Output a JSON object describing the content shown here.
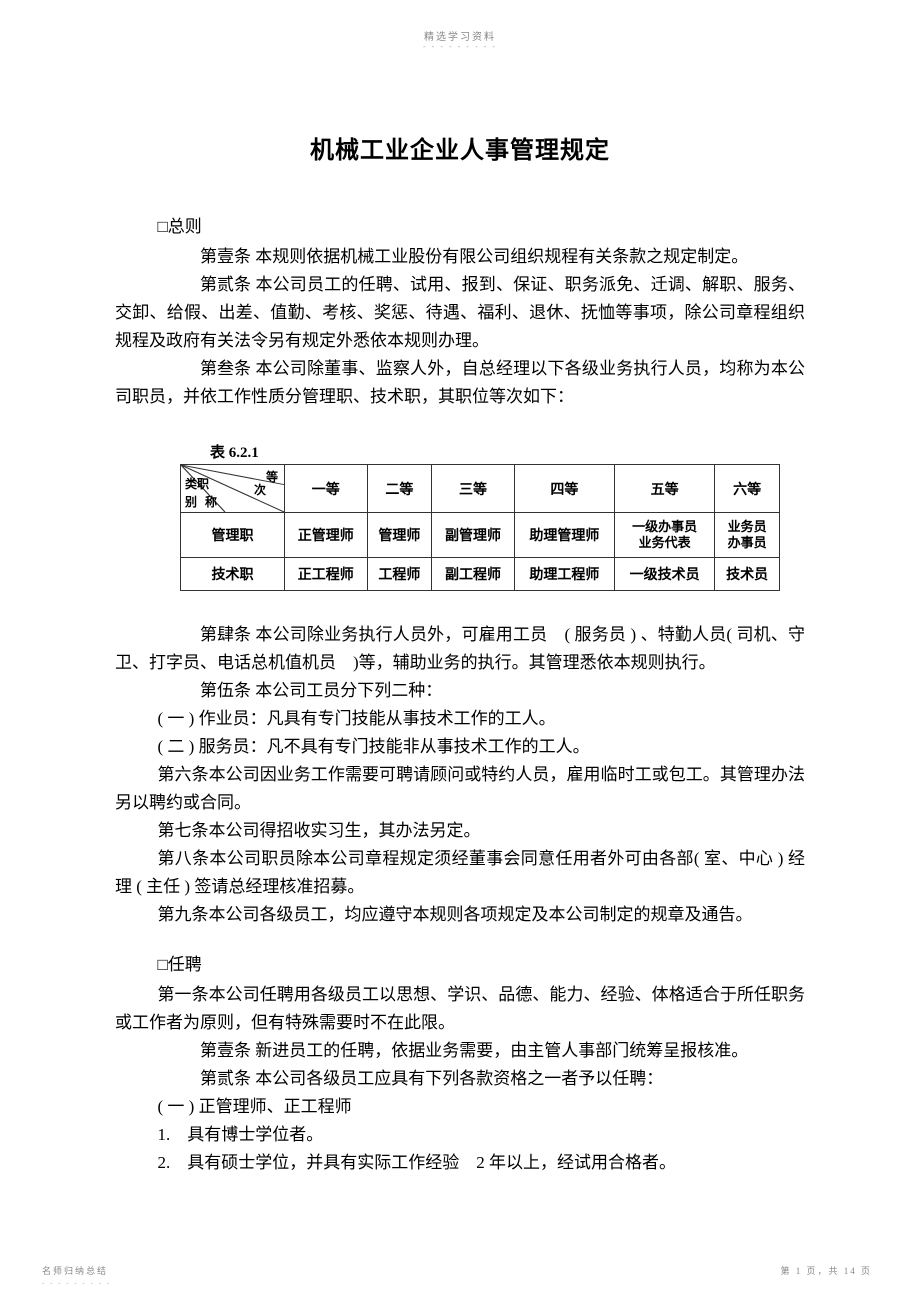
{
  "header": {
    "label": "精选学习资料",
    "dashes": "- - - - - - - - -"
  },
  "title": "机械工业企业人事管理规定",
  "section1": {
    "heading": "□总则",
    "art1_num": "第壹条",
    "art1_text": "本规则依据机械工业股份有限公司组织规程有关条款之规定制定。",
    "art2_num": "第贰条",
    "art2_text": "本公司员工的任聘、试用、报到、保证、职务派免、迁调、解职、服务、交卸、给假、出差、值勤、考核、奖惩、待遇、福利、退休、抚恤等事项，除公司章程组织规程及政府有关法令另有规定外悉依本规则办理。",
    "art3_num": "第叁条",
    "art3_text": "本公司除董事、监察人外，自总经理以下各级业务执行人员，均称为本公司职员，并依工作性质分管理职、技术职，其职位等次如下："
  },
  "table": {
    "label": "表 6.2.1",
    "diag": {
      "top": "等",
      "mid": "次",
      "left": "类职",
      "bot": "别",
      "bot2": "称"
    },
    "cols": [
      "一等",
      "二等",
      "三等",
      "四等",
      "五等",
      "六等"
    ],
    "rows": [
      {
        "label": "管理职",
        "cells": [
          "正管理师",
          "管理师",
          "副管理师",
          "助理管理师",
          "一级办事员\n业务代表",
          "业务员\n办事员"
        ]
      },
      {
        "label": "技术职",
        "cells": [
          "正工程师",
          "工程师",
          "副工程师",
          "助理工程师",
          "一级技术员",
          "技术员"
        ]
      }
    ]
  },
  "section1b": {
    "art4_num": "第肆条",
    "art4_text": "本公司除业务执行人员外，可雇用工员　( 服务员 ) 、特勤人员( 司机、守卫、打字员、电话总机值机员　)等，辅助业务的执行。其管理悉依本规则执行。",
    "art5_num": "第伍条",
    "art5_text": "本公司工员分下列二种：",
    "art5_1": "( 一 ) 作业员：凡具有专门技能从事技术工作的工人。",
    "art5_2": "( 二 ) 服务员：凡不具有专门技能非从事技术工作的工人。",
    "art6": "第六条本公司因业务工作需要可聘请顾问或特约人员，雇用临时工或包工。其管理办法另以聘约或合同。",
    "art7": "第七条本公司得招收实习生，其办法另定。",
    "art8": "第八条本公司职员除本公司章程规定须经董事会同意任用者外可由各部( 室、中心 ) 经理 ( 主任 ) 签请总经理核准招募。",
    "art9": "第九条本公司各级员工，均应遵守本规则各项规定及本公司制定的规章及通告。"
  },
  "section2": {
    "heading": "□任聘",
    "art1": "第一条本公司任聘用各级员工以思想、学识、品德、能力、经验、体格适合于所任职务或工作者为原则，但有特殊需要时不在此限。",
    "art1b_num": "第壹条",
    "art1b_text": "新进员工的任聘，依据业务需要，由主管人事部门统筹呈报核准。",
    "art2_num": "第贰条",
    "art2_text": "本公司各级员工应具有下列各款资格之一者予以任聘：",
    "q1_head": "( 一 ) 正管理师、正工程师",
    "q1_1": "1.　具有博士学位者。",
    "q1_2": "2.　具有硕士学位，并具有实际工作经验　2 年以上，经试用合格者。"
  },
  "footer": {
    "left": "名师归纳总结",
    "dashes": "- - - - - - - - -",
    "right": "第 1 页，共 14 页"
  }
}
